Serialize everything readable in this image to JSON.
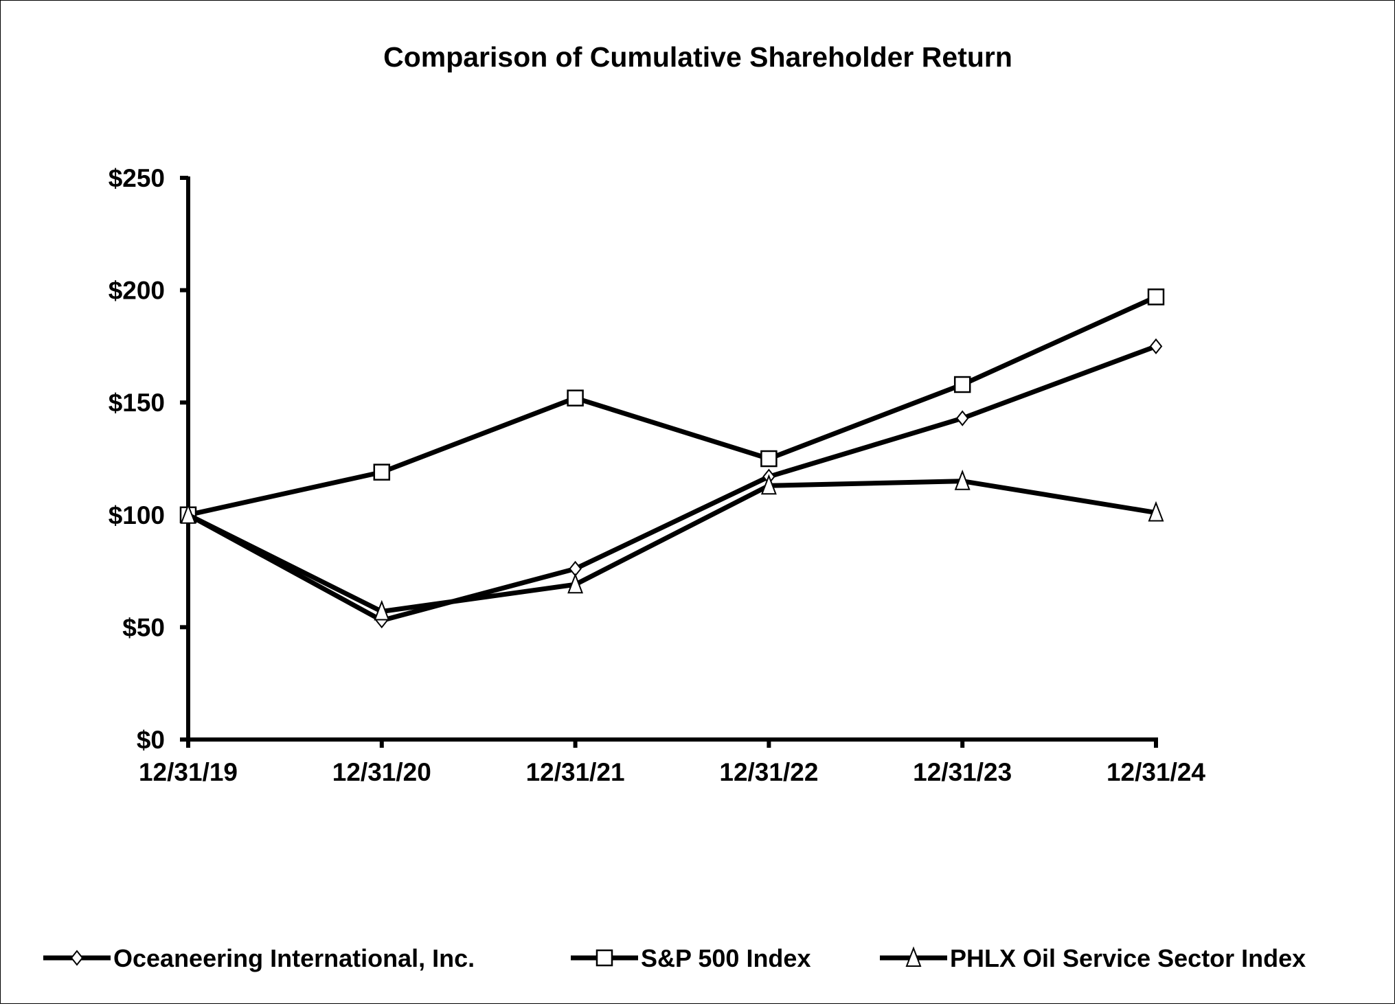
{
  "chart_data": {
    "type": "line",
    "title": "Comparison of Cumulative Shareholder Return",
    "xlabel": "",
    "ylabel": "",
    "categories": [
      "12/31/19",
      "12/31/20",
      "12/31/21",
      "12/31/22",
      "12/31/23",
      "12/31/24"
    ],
    "ylim": [
      0,
      250
    ],
    "yticks": [
      0,
      50,
      100,
      150,
      200,
      250
    ],
    "ytick_labels": [
      "$0",
      "$50",
      "$100",
      "$150",
      "$200",
      "$250"
    ],
    "grid": false,
    "legend_position": "bottom",
    "series": [
      {
        "name": "Oceaneering International, Inc.",
        "marker": "diamond",
        "values": [
          100,
          53,
          76,
          117,
          143,
          175
        ]
      },
      {
        "name": "S&P 500 Index",
        "marker": "square",
        "values": [
          100,
          119,
          152,
          125,
          158,
          197
        ]
      },
      {
        "name": "PHLX Oil Service Sector Index",
        "marker": "triangle",
        "values": [
          100,
          57,
          69,
          113,
          115,
          101
        ]
      }
    ],
    "colors": {
      "line": "#000000",
      "marker_fill": "#ffffff"
    }
  }
}
